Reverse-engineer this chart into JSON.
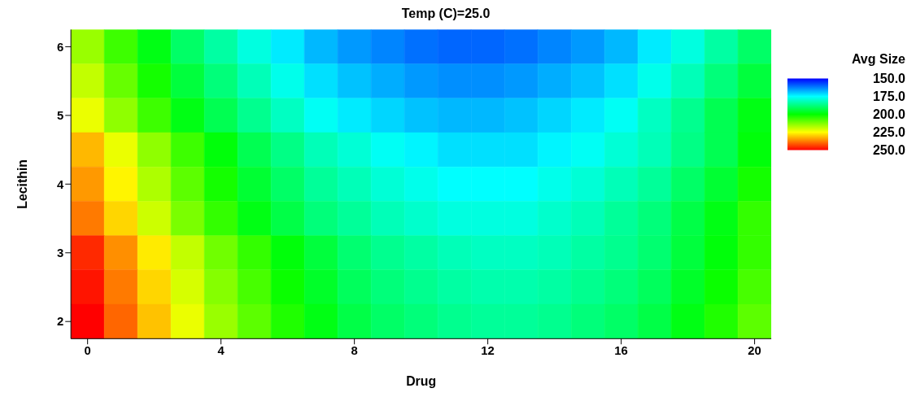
{
  "chart_data": {
    "type": "heatmap",
    "title": "Temp (C)=25.0",
    "xlabel": "Drug",
    "ylabel": "Lecithin",
    "legend_title": "Avg Size",
    "categories": [
      "0",
      null,
      null,
      null,
      "4",
      null,
      null,
      null,
      "8",
      null,
      null,
      null,
      "12",
      null,
      null,
      null,
      "16",
      null,
      null,
      null,
      "20"
    ],
    "y_categories": [
      "6",
      null,
      "5",
      null,
      "4",
      null,
      "3",
      null,
      "2"
    ],
    "clim": [
      150,
      250
    ],
    "cticks": [
      {
        "value": 150,
        "label": "150.0"
      },
      {
        "value": 175,
        "label": "175.0"
      },
      {
        "value": 200,
        "label": "200.0"
      },
      {
        "value": 225,
        "label": "225.0"
      },
      {
        "value": 250,
        "label": "250.0"
      }
    ],
    "colors": [
      "#0000ff",
      "#00ffff",
      "#00ff00",
      "#ffff00",
      "#ff0000"
    ],
    "cells": [
      [
        215,
        206,
        198,
        190,
        184,
        178,
        173,
        168,
        165,
        163,
        161,
        160,
        160,
        161,
        163,
        165,
        168,
        173,
        178,
        184,
        190
      ],
      [
        219,
        210,
        202,
        194,
        188,
        182,
        177,
        172,
        169,
        167,
        165,
        164,
        164,
        165,
        167,
        169,
        172,
        177,
        182,
        188,
        194
      ],
      [
        223,
        214,
        206,
        198,
        192,
        186,
        181,
        176,
        173,
        171,
        169,
        168,
        168,
        169,
        171,
        173,
        176,
        181,
        186,
        192,
        198
      ],
      [
        232,
        223,
        214,
        206,
        199,
        192,
        187,
        182,
        179,
        176,
        174,
        172,
        172,
        172,
        174,
        176,
        179,
        182,
        187,
        192,
        199
      ],
      [
        235,
        226,
        217,
        209,
        202,
        195,
        190,
        185,
        182,
        179,
        177,
        175,
        175,
        175,
        177,
        179,
        182,
        185,
        190,
        195,
        202
      ],
      [
        238,
        229,
        220,
        212,
        205,
        198,
        193,
        188,
        185,
        182,
        180,
        178,
        178,
        178,
        180,
        182,
        185,
        188,
        193,
        198,
        205
      ],
      [
        246,
        236,
        227,
        219,
        211,
        205,
        199,
        194,
        189,
        186,
        184,
        182,
        181,
        181,
        182,
        184,
        186,
        189,
        194,
        199,
        205
      ],
      [
        248,
        238,
        229,
        221,
        213,
        207,
        201,
        196,
        191,
        188,
        186,
        184,
        183,
        183,
        184,
        186,
        188,
        191,
        196,
        201,
        207
      ],
      [
        250,
        240,
        231,
        223,
        215,
        209,
        203,
        198,
        193,
        190,
        188,
        186,
        185,
        185,
        186,
        188,
        190,
        193,
        198,
        203,
        209
      ]
    ]
  }
}
